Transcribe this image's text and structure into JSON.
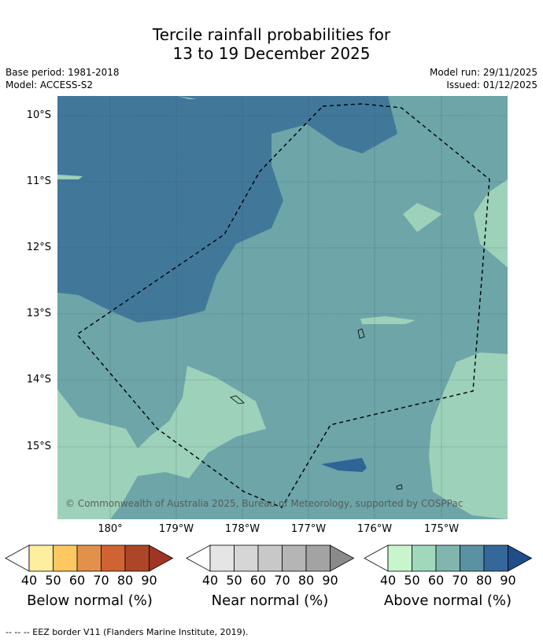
{
  "title_line1": "Tercile rainfall probabilities for",
  "title_line2": "13 to 19 December 2025",
  "base_period": "Base period: 1981-2018",
  "model": "Model: ACCESS-S2",
  "model_run": "Model run: 29/11/2025",
  "issued": "Issued: 01/12/2025",
  "lat_labels": [
    "10°S",
    "11°S",
    "12°S",
    "13°S",
    "14°S",
    "15°S"
  ],
  "lon_labels": [
    "180°",
    "179°W",
    "178°W",
    "177°W",
    "176°W",
    "175°W"
  ],
  "copyright": "© Commonwealth of Australia 2025, Bureau of Meteorology, supported by COSPPac",
  "legend": {
    "ticks": [
      "40",
      "50",
      "60",
      "70",
      "80",
      "90"
    ],
    "below": {
      "label": "Below normal (%)",
      "colors": [
        "#fdeea0",
        "#fdc862",
        "#e2904a",
        "#cf6333",
        "#ad4628",
        "#a03524"
      ]
    },
    "near": {
      "label": "Near normal (%)",
      "colors": [
        "#e5e5e5",
        "#d6d6d6",
        "#c8c8c8",
        "#b5b5b5",
        "#a3a3a3",
        "#8a8a8a"
      ]
    },
    "above": {
      "label": "Above normal (%)",
      "colors": [
        "#c8f5cc",
        "#a0d8bc",
        "#80b6ae",
        "#5a92a4",
        "#36679a",
        "#1e4d8a"
      ]
    }
  },
  "map_colors": {
    "c50": "#9dd1b9",
    "c60": "#6da5a8",
    "c70": "#41789a",
    "c80": "#2f6496"
  },
  "footer": "--  --  -- EEZ border V11 (Flanders Marine Institute, 2019)."
}
